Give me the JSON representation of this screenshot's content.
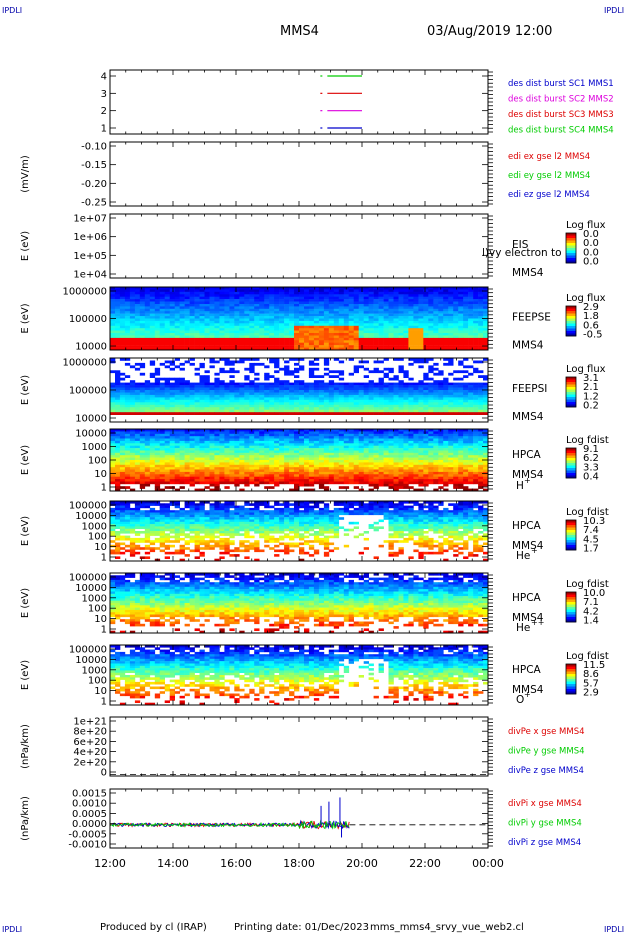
{
  "corners": {
    "top_left": "IPDLI",
    "top_right": "IPDLI",
    "bottom_left": "IPDLI",
    "bottom_right": "IPDLI"
  },
  "header": {
    "spacecraft": "MMS4",
    "datetime": "03/Aug/2019 12:00"
  },
  "footer": {
    "produced_by": "Produced by cl (IRAP)",
    "printing_date": "Printing date: 01/Dec/2023",
    "filename": "mms_mms4_srvy_vue_web2.cl"
  },
  "time_axis": {
    "start_hour": 12,
    "end_hour": 24,
    "labels": [
      "12:00",
      "14:00",
      "16:00",
      "18:00",
      "20:00",
      "22:00",
      "00:00"
    ]
  },
  "colors": {
    "red": "#dd0000",
    "green": "#00cc00",
    "blue": "#0000cc",
    "magenta": "#dd00dd"
  },
  "chart_data": [
    {
      "id": "burst",
      "type": "line",
      "ylabel": "",
      "yticks": [
        "4",
        "3",
        "2",
        "1"
      ],
      "legend": [
        {
          "text": "des dist burst SC1 MMS1",
          "color": "#0000cc"
        },
        {
          "text": "des dist burst SC2 MMS2",
          "color": "#dd00dd"
        },
        {
          "text": "des dist burst SC3 MMS3",
          "color": "#dd0000"
        },
        {
          "text": "des dist burst SC4 MMS4",
          "color": "#00cc00"
        }
      ],
      "series": [
        {
          "level": 4,
          "color": "#00cc00",
          "x": [
            18.9,
            20.0
          ]
        },
        {
          "level": 3,
          "color": "#dd0000",
          "x": [
            18.9,
            20.0
          ]
        },
        {
          "level": 2,
          "color": "#dd00dd",
          "x": [
            18.9,
            20.0
          ]
        },
        {
          "level": 1,
          "color": "#0000cc",
          "x": [
            18.9,
            20.0
          ]
        }
      ]
    },
    {
      "id": "edi",
      "type": "line",
      "ylabel": "(mV/m)",
      "ylim": [
        -0.28,
        -0.08
      ],
      "yticks": [
        "-0.10",
        "-0.15",
        "-0.20",
        "-0.25"
      ],
      "legend": [
        {
          "text": "edi ex gse l2 MMS4",
          "color": "#dd0000"
        },
        {
          "text": "edi ey gse l2 MMS4",
          "color": "#00cc00"
        },
        {
          "text": "edi ez gse l2 MMS4",
          "color": "#0000cc"
        }
      ]
    },
    {
      "id": "eis",
      "type": "heatmap",
      "ylabel": "E (eV)",
      "yticks": [
        "1e+07",
        "1e+06",
        "1e+05",
        "1e+04"
      ],
      "instrument": [
        "EIS",
        "MMS4"
      ],
      "overlay_text": "l)vy electron to",
      "colorbar": {
        "title": "Log flux",
        "labels": [
          "0.0",
          "0.0",
          "0.0",
          "0.0"
        ]
      }
    },
    {
      "id": "feepse",
      "type": "heatmap",
      "ylabel": "E (eV)",
      "yticks": [
        "1000000",
        "100000",
        "10000"
      ],
      "instrument": [
        "FEEPSE",
        "MMS4"
      ],
      "colorbar": {
        "title": "Log flux",
        "labels": [
          "2.9",
          "1.8",
          "0.6",
          "-0.5"
        ]
      }
    },
    {
      "id": "feepsi",
      "type": "heatmap",
      "ylabel": "E (eV)",
      "yticks": [
        "1000000",
        "100000",
        "10000"
      ],
      "instrument": [
        "FEEPSI",
        "MMS4"
      ],
      "colorbar": {
        "title": "Log flux",
        "labels": [
          "3.1",
          "2.1",
          "1.2",
          "0.2"
        ]
      }
    },
    {
      "id": "hpca_h",
      "type": "heatmap",
      "ylabel": "E (eV)",
      "yticks": [
        "10000",
        "1000",
        "100",
        "10",
        "1"
      ],
      "instrument": [
        "HPCA",
        "MMS4"
      ],
      "species": "H",
      "charge": "+",
      "colorbar": {
        "title": "Log fdist",
        "labels": [
          "9.1",
          "6.2",
          "3.3",
          "0.4"
        ]
      }
    },
    {
      "id": "hpca_he",
      "type": "heatmap",
      "ylabel": "E (eV)",
      "yticks": [
        "100000",
        "10000",
        "1000",
        "100",
        "10",
        "1"
      ],
      "instrument": [
        "HPCA",
        "MMS4"
      ],
      "species": "He",
      "charge": "+",
      "colorbar": {
        "title": "Log fdist",
        "labels": [
          "10.3",
          "7.4",
          "4.5",
          "1.7"
        ]
      }
    },
    {
      "id": "hpca_he2",
      "type": "heatmap",
      "ylabel": "E (eV)",
      "yticks": [
        "100000",
        "10000",
        "1000",
        "100",
        "10",
        "1"
      ],
      "instrument": [
        "HPCA",
        "MMS4"
      ],
      "species": "He",
      "charge": "++",
      "colorbar": {
        "title": "Log fdist",
        "labels": [
          "10.0",
          "7.1",
          "4.2",
          "1.4"
        ]
      }
    },
    {
      "id": "hpca_o",
      "type": "heatmap",
      "ylabel": "E (eV)",
      "yticks": [
        "100000",
        "10000",
        "1000",
        "100",
        "10",
        "1"
      ],
      "instrument": [
        "HPCA",
        "MMS4"
      ],
      "species": "O",
      "charge": "+",
      "colorbar": {
        "title": "Log fdist",
        "labels": [
          "11.5",
          "8.6",
          "5.7",
          "2.9"
        ]
      }
    },
    {
      "id": "divpe",
      "type": "line",
      "ylabel": "(nPa/km)",
      "ylim": [
        -3e+19,
        1.05e+21
      ],
      "yticks": [
        "1e+21",
        "8e+20",
        "6e+20",
        "4e+20",
        "2e+20",
        "0"
      ],
      "legend": [
        {
          "text": "divPe x gse MMS4",
          "color": "#dd0000"
        },
        {
          "text": "divPe y gse MMS4",
          "color": "#00cc00"
        },
        {
          "text": "divPe z gse MMS4",
          "color": "#0000cc"
        }
      ]
    },
    {
      "id": "divpi",
      "type": "line",
      "ylabel": "(nPa/km)",
      "ylim": [
        -0.0011,
        0.0017
      ],
      "yticks": [
        "0.0015",
        "0.0010",
        "0.0005",
        "0.0000",
        "-0.0005",
        "-0.0010"
      ],
      "legend": [
        {
          "text": "divPi x gse MMS4",
          "color": "#dd0000"
        },
        {
          "text": "divPi y gse MMS4",
          "color": "#00cc00"
        },
        {
          "text": "divPi z gse MMS4",
          "color": "#0000cc"
        }
      ],
      "data_end_hour": 19.6,
      "spikes": [
        [
          18.7,
          0.0009
        ],
        [
          18.95,
          0.0011
        ],
        [
          19.3,
          0.0013
        ],
        [
          19.35,
          -0.0006
        ]
      ]
    }
  ]
}
